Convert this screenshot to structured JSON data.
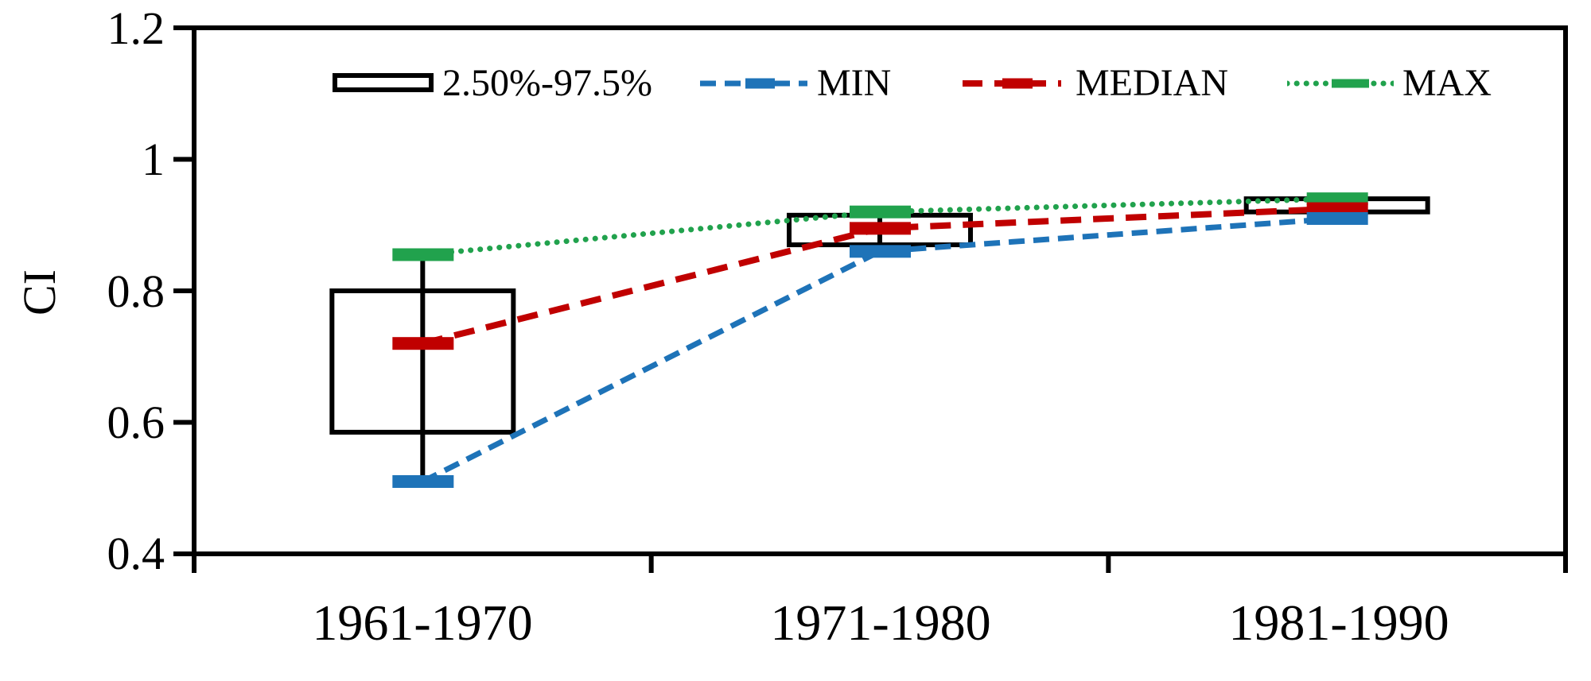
{
  "chart_data": {
    "type": "box",
    "title": "",
    "xlabel": "",
    "ylabel": "CI",
    "categories": [
      "1961-1970",
      "1971-1980",
      "1981-1990"
    ],
    "ylim": [
      0.4,
      1.2
    ],
    "yticks": [
      1.2,
      1.0,
      0.8,
      0.6,
      0.4
    ],
    "ytick_labels": [
      "1.2",
      "1",
      "0.8",
      "0.6",
      "0.4"
    ],
    "grid": false,
    "legend_position": "top-inside",
    "series": [
      {
        "key": "box",
        "name": "2.50%-97.5%",
        "style": "open-box",
        "color": "#000000",
        "low": [
          0.585,
          0.87,
          0.92
        ],
        "high": [
          0.8,
          0.915,
          0.94
        ]
      },
      {
        "key": "min",
        "name": "MIN",
        "style": "dashed-line",
        "color": "#1E73B8",
        "values": [
          0.51,
          0.86,
          0.91
        ]
      },
      {
        "key": "median",
        "name": "MEDIAN",
        "style": "dashed-line",
        "color": "#C00000",
        "values": [
          0.72,
          0.895,
          0.925
        ]
      },
      {
        "key": "max",
        "name": "MAX",
        "style": "dotted-line",
        "color": "#21A24D",
        "values": [
          0.855,
          0.92,
          0.94
        ]
      }
    ]
  }
}
